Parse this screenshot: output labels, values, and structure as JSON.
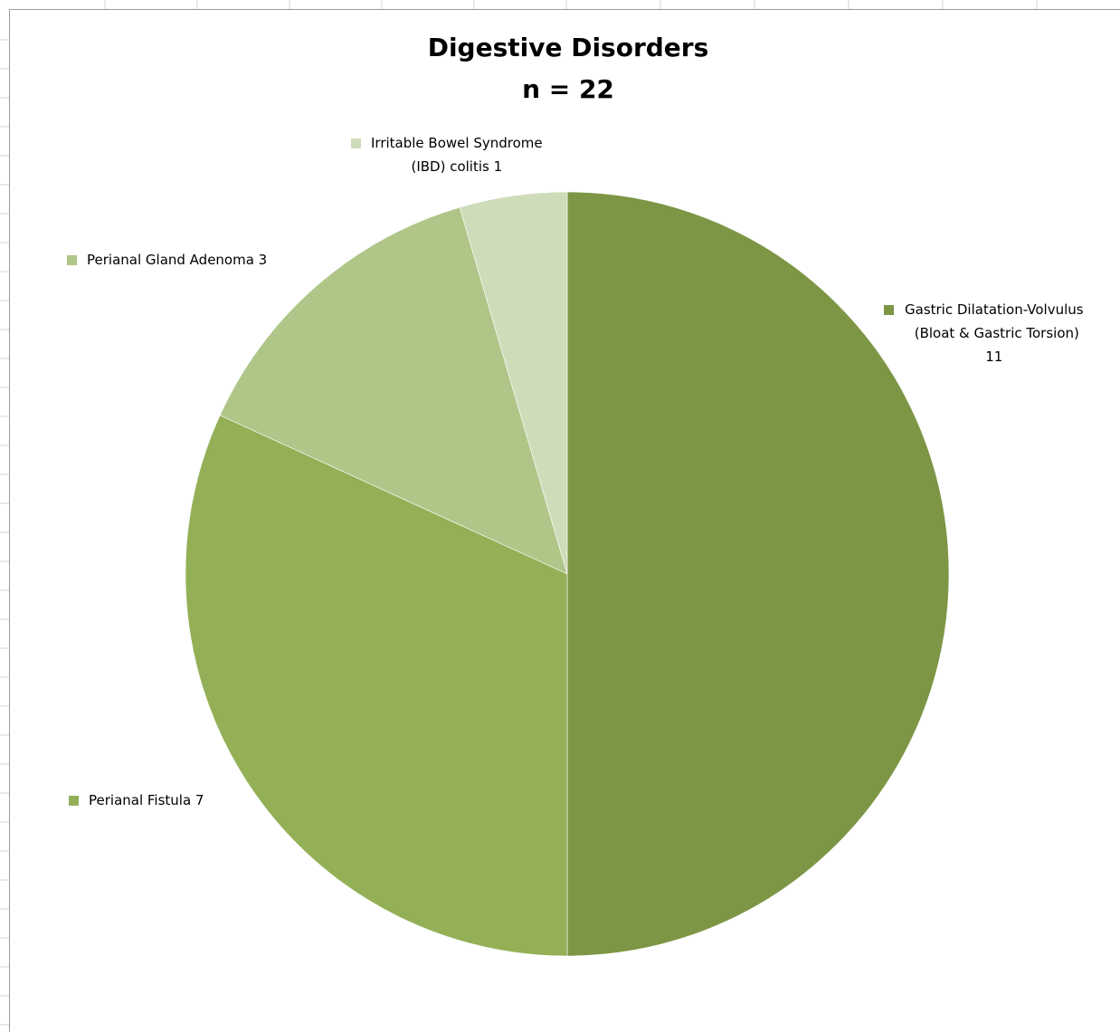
{
  "chart_data": {
    "type": "pie",
    "title": "Digestive Disorders",
    "subtitle": "n = 22",
    "slices": [
      {
        "label_lines": [
          "Gastric Dilatation-Volvulus",
          "(Bloat & Gastric Torsion)",
          "11"
        ],
        "value": 11,
        "color": "#7d9645"
      },
      {
        "label_lines": [
          "Perianal Fistula 7"
        ],
        "value": 7,
        "color": "#93b057"
      },
      {
        "label_lines": [
          "Perianal Gland Adenoma 3"
        ],
        "value": 3,
        "color": "#afc688"
      },
      {
        "label_lines": [
          "Irritable Bowel Syndrome",
          "(IBD) colitis 1"
        ],
        "value": 1,
        "color": "#cfdcba"
      }
    ],
    "start_angle_deg": 0,
    "direction": "clockwise",
    "legend": "labels next to slices",
    "grid": false
  }
}
